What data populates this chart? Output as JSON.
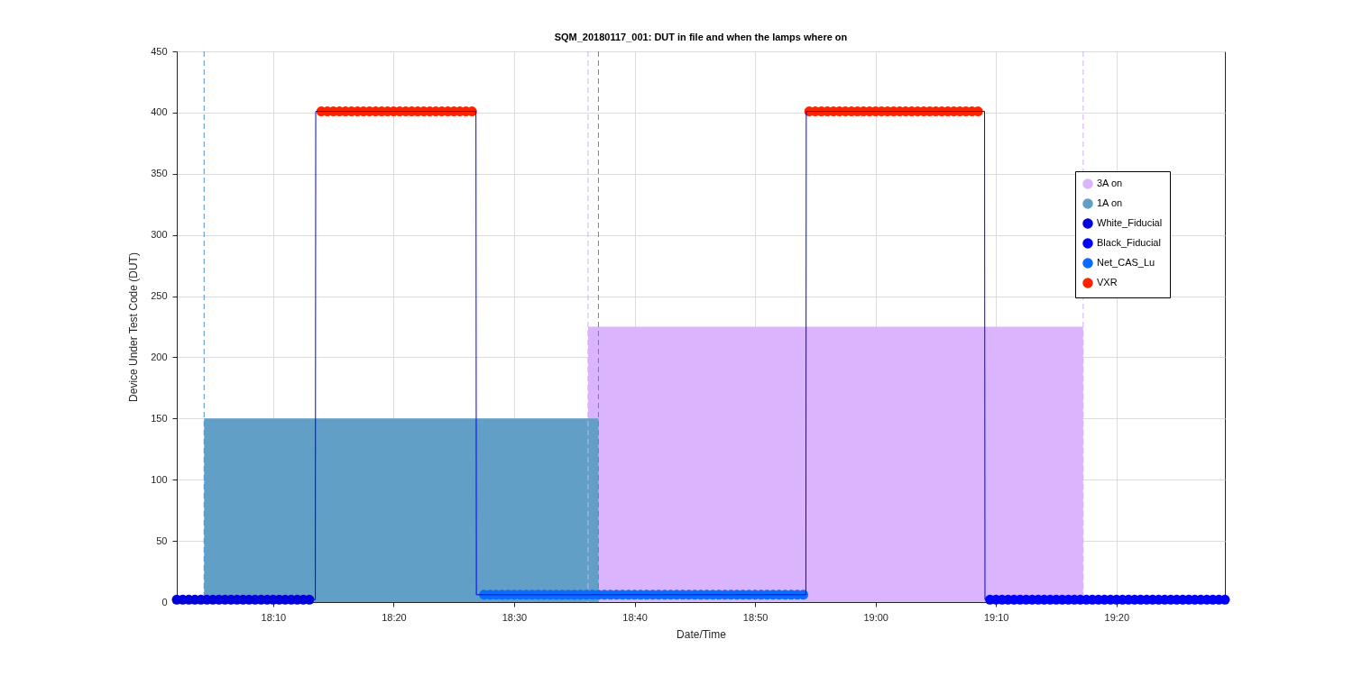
{
  "chart_data": {
    "type": "scatter",
    "title": "SQM_20180117_001: DUT in file and when the lamps where on",
    "xlabel": "Date/Time",
    "ylabel": "Device Under Test Code (DUT)",
    "xlim": [
      "2018-01-17T18:02:00",
      "2018-01-17T19:29:00"
    ],
    "xticks": [
      {
        "value": "2018-01-17T18:10",
        "label": "18:10"
      },
      {
        "value": "2018-01-17T18:20",
        "label": "18:20"
      },
      {
        "value": "2018-01-17T18:30",
        "label": "18:30"
      },
      {
        "value": "2018-01-17T18:40",
        "label": "18:40"
      },
      {
        "value": "2018-01-17T18:50",
        "label": "18:50"
      },
      {
        "value": "2018-01-17T19:00",
        "label": "19:00"
      },
      {
        "value": "2018-01-17T19:10",
        "label": "19:10"
      },
      {
        "value": "2018-01-17T19:20",
        "label": "19:20"
      }
    ],
    "ylim": [
      0,
      450
    ],
    "yticks": [
      0,
      50,
      100,
      150,
      200,
      250,
      300,
      350,
      400,
      450
    ],
    "grid": true,
    "legend": "top right",
    "ref_lines": [
      {
        "axis": "x",
        "value": "2018-01-17T18:04:16",
        "color": "#4a90c8",
        "line_style": "dashed"
      },
      {
        "axis": "x",
        "value": "2018-01-17T18:37:00",
        "color": "#4a90c8",
        "line_style": "dashed"
      },
      {
        "axis": "x",
        "value": "2018-01-17T18:36:08",
        "color": "#d0b0f8",
        "line_style": "dashed"
      },
      {
        "axis": "x",
        "value": "2018-01-17T19:17:14",
        "color": "#d0b0f8",
        "line_style": "dashed"
      }
    ],
    "series": [
      {
        "name": "3A on",
        "type": "area",
        "color": "#dab4fd",
        "x": [
          "2018-01-17T18:36:08",
          "2018-01-17T19:17:14"
        ],
        "values": [
          225,
          225
        ]
      },
      {
        "name": "1A on",
        "type": "area",
        "color": "#629fc7",
        "x": [
          "2018-01-17T18:04:16",
          "2018-01-17T18:37:00"
        ],
        "values": [
          150,
          150
        ]
      },
      {
        "type": "line",
        "color": "#0000ff",
        "x": [
          "2018-01-17T18:02:00",
          "2018-01-17T18:13:30",
          "2018-01-17T18:13:32",
          "2018-01-17T18:26:50",
          "2018-01-17T18:26:52",
          "2018-01-17T18:54:13",
          "2018-01-17T18:54:15",
          "2018-01-17T19:09:03",
          "2018-01-17T19:09:05",
          "2018-01-17T19:29:00"
        ],
        "values": [
          2,
          2,
          401,
          401,
          6,
          6,
          401,
          401,
          2,
          2
        ]
      },
      {
        "name": "White_Fiducial",
        "marker": "circle",
        "color": "#0000d8",
        "x": [
          "2018-01-17T18:02:00",
          "2018-01-17T18:02:30",
          "2018-01-17T18:03:00",
          "2018-01-17T18:03:30",
          "2018-01-17T18:04:00",
          "2018-01-17T18:04:30",
          "2018-01-17T18:05:00",
          "2018-01-17T18:05:30",
          "2018-01-17T18:06:00",
          "2018-01-17T18:06:30",
          "2018-01-17T18:07:00",
          "2018-01-17T18:07:30",
          "2018-01-17T18:08:00",
          "2018-01-17T18:08:30",
          "2018-01-17T18:09:00",
          "2018-01-17T18:09:30",
          "2018-01-17T18:10:00",
          "2018-01-17T18:10:30",
          "2018-01-17T18:11:00",
          "2018-01-17T18:11:30",
          "2018-01-17T18:12:00",
          "2018-01-17T18:12:30",
          "2018-01-17T18:13:00"
        ],
        "values": [
          2,
          2,
          2,
          2,
          2,
          2,
          2,
          2,
          2,
          2,
          2,
          2,
          2,
          2,
          2,
          2,
          2,
          2,
          2,
          2,
          2,
          2,
          2
        ]
      },
      {
        "name": "Black_Fiducial",
        "marker": "circle",
        "color": "#0000ff",
        "x": [
          "2018-01-17T19:09:30",
          "2018-01-17T19:10:00",
          "2018-01-17T19:10:30",
          "2018-01-17T19:11:00",
          "2018-01-17T19:11:30",
          "2018-01-17T19:12:00",
          "2018-01-17T19:12:30",
          "2018-01-17T19:13:00",
          "2018-01-17T19:13:30",
          "2018-01-17T19:14:00",
          "2018-01-17T19:14:30",
          "2018-01-17T19:15:00",
          "2018-01-17T19:15:30",
          "2018-01-17T19:16:00",
          "2018-01-17T19:16:30",
          "2018-01-17T19:17:00",
          "2018-01-17T19:17:30",
          "2018-01-17T19:18:00",
          "2018-01-17T19:18:30",
          "2018-01-17T19:19:00",
          "2018-01-17T19:19:30",
          "2018-01-17T19:20:00",
          "2018-01-17T19:20:30",
          "2018-01-17T19:21:00",
          "2018-01-17T19:21:30",
          "2018-01-17T19:22:00",
          "2018-01-17T19:22:30",
          "2018-01-17T19:23:00",
          "2018-01-17T19:23:30",
          "2018-01-17T19:24:00",
          "2018-01-17T19:24:30",
          "2018-01-17T19:25:00",
          "2018-01-17T19:25:30",
          "2018-01-17T19:26:00",
          "2018-01-17T19:26:30",
          "2018-01-17T19:27:00",
          "2018-01-17T19:27:30",
          "2018-01-17T19:28:00",
          "2018-01-17T19:28:30",
          "2018-01-17T19:29:00"
        ],
        "values": [
          2,
          2,
          2,
          2,
          2,
          2,
          2,
          2,
          2,
          2,
          2,
          2,
          2,
          2,
          2,
          2,
          2,
          2,
          2,
          2,
          2,
          2,
          2,
          2,
          2,
          2,
          2,
          2,
          2,
          2,
          2,
          2,
          2,
          2,
          2,
          2,
          2,
          2,
          2,
          2
        ]
      },
      {
        "name": "Net_CAS_Lu",
        "marker": "circle",
        "color": "#0a6cff",
        "x": [
          "2018-01-17T18:27:30",
          "2018-01-17T18:28:00",
          "2018-01-17T18:28:30",
          "2018-01-17T18:29:00",
          "2018-01-17T18:29:30",
          "2018-01-17T18:30:00",
          "2018-01-17T18:30:30",
          "2018-01-17T18:31:00",
          "2018-01-17T18:31:30",
          "2018-01-17T18:32:00",
          "2018-01-17T18:32:30",
          "2018-01-17T18:33:00",
          "2018-01-17T18:33:30",
          "2018-01-17T18:34:00",
          "2018-01-17T18:34:30",
          "2018-01-17T18:35:00",
          "2018-01-17T18:35:30",
          "2018-01-17T18:36:00",
          "2018-01-17T18:36:30",
          "2018-01-17T18:37:00",
          "2018-01-17T18:37:30",
          "2018-01-17T18:38:00",
          "2018-01-17T18:38:30",
          "2018-01-17T18:39:00",
          "2018-01-17T18:39:30",
          "2018-01-17T18:40:00",
          "2018-01-17T18:40:30",
          "2018-01-17T18:41:00",
          "2018-01-17T18:41:30",
          "2018-01-17T18:42:00",
          "2018-01-17T18:42:30",
          "2018-01-17T18:43:00",
          "2018-01-17T18:43:30",
          "2018-01-17T18:44:00",
          "2018-01-17T18:44:30",
          "2018-01-17T18:45:00",
          "2018-01-17T18:45:30",
          "2018-01-17T18:46:00",
          "2018-01-17T18:46:30",
          "2018-01-17T18:47:00",
          "2018-01-17T18:47:30",
          "2018-01-17T18:48:00",
          "2018-01-17T18:48:30",
          "2018-01-17T18:49:00",
          "2018-01-17T18:49:30",
          "2018-01-17T18:50:00",
          "2018-01-17T18:50:30",
          "2018-01-17T18:51:00",
          "2018-01-17T18:51:30",
          "2018-01-17T18:52:00",
          "2018-01-17T18:52:30",
          "2018-01-17T18:53:00",
          "2018-01-17T18:53:30",
          "2018-01-17T18:54:00"
        ],
        "values": [
          6,
          6,
          6,
          6,
          6,
          6,
          6,
          6,
          6,
          6,
          6,
          6,
          6,
          6,
          6,
          6,
          6,
          6,
          6,
          6,
          6,
          6,
          6,
          6,
          6,
          6,
          6,
          6,
          6,
          6,
          6,
          6,
          6,
          6,
          6,
          6,
          6,
          6,
          6,
          6,
          6,
          6,
          6,
          6,
          6,
          6,
          6,
          6,
          6,
          6,
          6,
          6,
          6,
          6
        ]
      },
      {
        "name": "VXR",
        "marker": "circle",
        "color": "#ff2200",
        "x": [
          "2018-01-17T18:14:00",
          "2018-01-17T18:14:30",
          "2018-01-17T18:15:00",
          "2018-01-17T18:15:30",
          "2018-01-17T18:16:00",
          "2018-01-17T18:16:30",
          "2018-01-17T18:17:00",
          "2018-01-17T18:17:30",
          "2018-01-17T18:18:00",
          "2018-01-17T18:18:30",
          "2018-01-17T18:19:00",
          "2018-01-17T18:19:30",
          "2018-01-17T18:20:00",
          "2018-01-17T18:20:30",
          "2018-01-17T18:21:00",
          "2018-01-17T18:21:30",
          "2018-01-17T18:22:00",
          "2018-01-17T18:22:30",
          "2018-01-17T18:23:00",
          "2018-01-17T18:23:30",
          "2018-01-17T18:24:00",
          "2018-01-17T18:24:30",
          "2018-01-17T18:25:00",
          "2018-01-17T18:25:30",
          "2018-01-17T18:26:00",
          "2018-01-17T18:26:30",
          "2018-01-17T18:54:30",
          "2018-01-17T18:55:00",
          "2018-01-17T18:55:30",
          "2018-01-17T18:56:00",
          "2018-01-17T18:56:30",
          "2018-01-17T18:57:00",
          "2018-01-17T18:57:30",
          "2018-01-17T18:58:00",
          "2018-01-17T18:58:30",
          "2018-01-17T18:59:00",
          "2018-01-17T18:59:30",
          "2018-01-17T19:00:00",
          "2018-01-17T19:00:30",
          "2018-01-17T19:01:00",
          "2018-01-17T19:01:30",
          "2018-01-17T19:02:00",
          "2018-01-17T19:02:30",
          "2018-01-17T19:03:00",
          "2018-01-17T19:03:30",
          "2018-01-17T19:04:00",
          "2018-01-17T19:04:30",
          "2018-01-17T19:05:00",
          "2018-01-17T19:05:30",
          "2018-01-17T19:06:00",
          "2018-01-17T19:06:30",
          "2018-01-17T19:07:00",
          "2018-01-17T19:07:30",
          "2018-01-17T19:08:00",
          "2018-01-17T19:08:30"
        ],
        "values": [
          401,
          401,
          401,
          401,
          401,
          401,
          401,
          401,
          401,
          401,
          401,
          401,
          401,
          401,
          401,
          401,
          401,
          401,
          401,
          401,
          401,
          401,
          401,
          401,
          401,
          401,
          401,
          401,
          401,
          401,
          401,
          401,
          401,
          401,
          401,
          401,
          401,
          401,
          401,
          401,
          401,
          401,
          401,
          401,
          401,
          401,
          401,
          401,
          401,
          401,
          401,
          401,
          401,
          401,
          401
        ]
      }
    ]
  }
}
